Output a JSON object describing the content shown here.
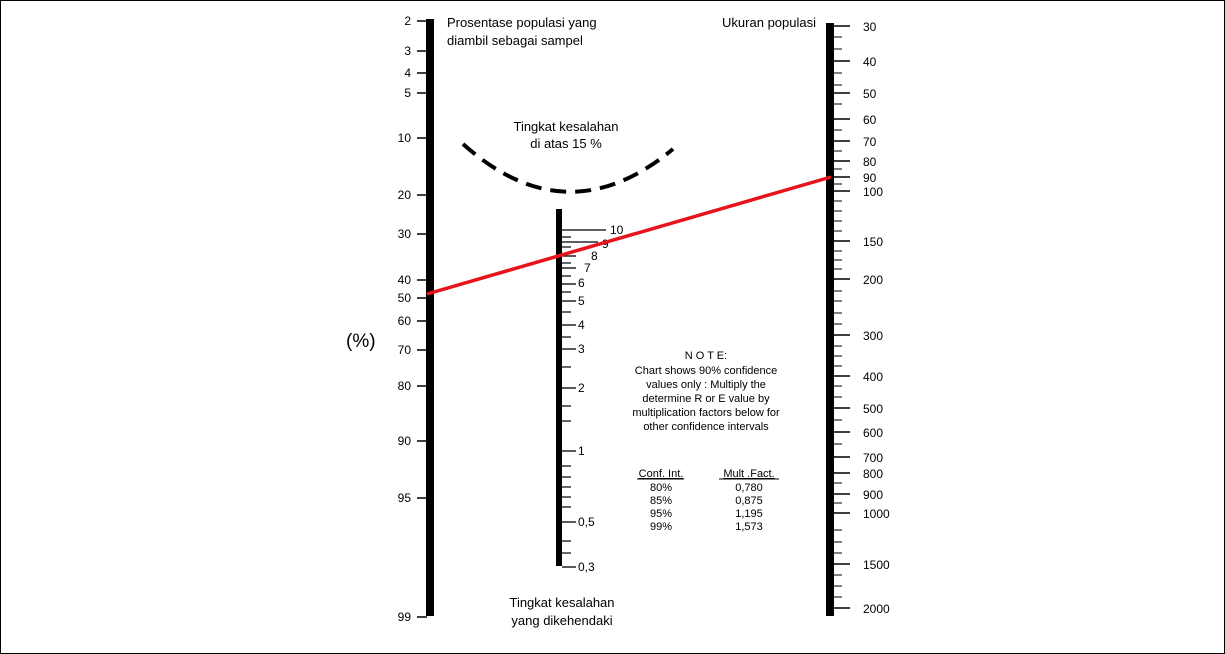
{
  "left_axis": {
    "title_lines": [
      "Prosentase populasi yang",
      "diambil sebagai sampel"
    ],
    "unit": "(%)",
    "ticks": [
      {
        "label": "2",
        "value": 2
      },
      {
        "label": "3",
        "value": 3
      },
      {
        "label": "4",
        "value": 4
      },
      {
        "label": "5",
        "value": 5
      },
      {
        "label": "10",
        "value": 10
      },
      {
        "label": "20",
        "value": 20
      },
      {
        "label": "30",
        "value": 30
      },
      {
        "label": "40",
        "value": 40
      },
      {
        "label": "50",
        "value": 50
      },
      {
        "label": "60",
        "value": 60
      },
      {
        "label": "70",
        "value": 70
      },
      {
        "label": "80",
        "value": 80
      },
      {
        "label": "90",
        "value": 90
      },
      {
        "label": "95",
        "value": 95
      },
      {
        "label": "99",
        "value": 99
      }
    ]
  },
  "middle_axis": {
    "title_lines": [
      "Tingkat kesalahan",
      "yang dikehendaki"
    ],
    "labels": [
      {
        "label": "10",
        "value": 10
      },
      {
        "label": "9",
        "value": 9
      },
      {
        "label": "8",
        "value": 8
      },
      {
        "label": "7",
        "value": 7
      },
      {
        "label": "6",
        "value": 6
      },
      {
        "label": "5",
        "value": 5
      },
      {
        "label": "4",
        "value": 4
      },
      {
        "label": "3",
        "value": 3
      },
      {
        "label": "2",
        "value": 2
      },
      {
        "label": "1",
        "value": 1
      },
      {
        "label": "0,5",
        "value": 0.5
      },
      {
        "label": "0,3",
        "value": 0.3
      }
    ]
  },
  "right_axis": {
    "title": "Ukuran populasi",
    "ticks": [
      {
        "label": "30",
        "value": 30
      },
      {
        "label": "40",
        "value": 40
      },
      {
        "label": "50",
        "value": 50
      },
      {
        "label": "60",
        "value": 60
      },
      {
        "label": "70",
        "value": 70
      },
      {
        "label": "80",
        "value": 80
      },
      {
        "label": "90",
        "value": 90
      },
      {
        "label": "100",
        "value": 100
      },
      {
        "label": "150",
        "value": 150
      },
      {
        "label": "200",
        "value": 200
      },
      {
        "label": "300",
        "value": 300
      },
      {
        "label": "400",
        "value": 400
      },
      {
        "label": "500",
        "value": 500
      },
      {
        "label": "600",
        "value": 600
      },
      {
        "label": "700",
        "value": 700
      },
      {
        "label": "800",
        "value": 800
      },
      {
        "label": "900",
        "value": 900
      },
      {
        "label": "1000",
        "value": 1000
      },
      {
        "label": "1500",
        "value": 1500
      },
      {
        "label": "2000",
        "value": 2000
      }
    ]
  },
  "error_region": {
    "lines": [
      "Tingkat kesalahan",
      "di atas 15 %"
    ]
  },
  "note": {
    "heading": "N O T E:",
    "lines": [
      "Chart shows 90% confidence",
      "values only : Multiply the",
      "determine R or E value by",
      "multiplication factors below for",
      "other confidence intervals"
    ]
  },
  "factor_table": {
    "headers": [
      "Conf. Int.",
      "Mult .Fact."
    ],
    "rows": [
      [
        "80%",
        "0,780"
      ],
      [
        "85%",
        "0,875"
      ],
      [
        "95%",
        "1,195"
      ],
      [
        "99%",
        "1,573"
      ]
    ]
  },
  "indicator_line": {
    "color": "#e8141b",
    "left_value_percent": 50,
    "middle_value": 8,
    "right_value_population": 90
  },
  "colors": {
    "ink": "#000000",
    "indicator": "#e8141b"
  }
}
